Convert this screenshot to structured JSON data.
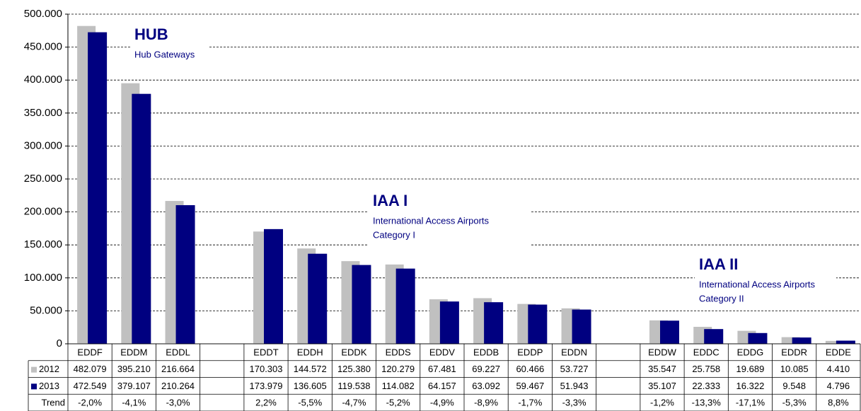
{
  "chart_data": {
    "type": "bar",
    "categories": [
      "EDDF",
      "EDDM",
      "EDDL",
      null,
      "EDDT",
      "EDDH",
      "EDDK",
      "EDDS",
      "EDDV",
      "EDDB",
      "EDDP",
      "EDDN",
      null,
      "EDDW",
      "EDDC",
      "EDDG",
      "EDDR",
      "EDDE"
    ],
    "series": [
      {
        "name": "2012",
        "color": "#c0c0c0",
        "values": [
          482079,
          395210,
          216664,
          null,
          170303,
          144572,
          125380,
          120279,
          67481,
          69227,
          60466,
          53727,
          null,
          35547,
          25758,
          19689,
          10085,
          4410
        ],
        "value_labels": [
          "482.079",
          "395.210",
          "216.664",
          null,
          "170.303",
          "144.572",
          "125.380",
          "120.279",
          "67.481",
          "69.227",
          "60.466",
          "53.727",
          null,
          "35.547",
          "25.758",
          "19.689",
          "10.085",
          "4.410"
        ]
      },
      {
        "name": "2013",
        "color": "#000080",
        "values": [
          472549,
          379107,
          210264,
          null,
          173979,
          136605,
          119538,
          114082,
          64157,
          63092,
          59467,
          51943,
          null,
          35107,
          22333,
          16322,
          9548,
          4796
        ],
        "value_labels": [
          "472.549",
          "379.107",
          "210.264",
          null,
          "173.979",
          "136.605",
          "119.538",
          "114.082",
          "64.157",
          "63.092",
          "59.467",
          "51.943",
          null,
          "35.107",
          "22.333",
          "16.322",
          "9.548",
          "4.796"
        ]
      }
    ],
    "trend_label": "Trend",
    "trend": [
      -2.0,
      -4.1,
      -3.0,
      null,
      2.2,
      -5.5,
      -4.7,
      -5.2,
      -4.9,
      -8.9,
      -1.7,
      -3.3,
      null,
      -1.2,
      -13.3,
      -17.1,
      -5.3,
      8.8
    ],
    "trend_labels": [
      "-2,0%",
      "-4,1%",
      "-3,0%",
      null,
      "2,2%",
      "-5,5%",
      "-4,7%",
      "-5,2%",
      "-4,9%",
      "-8,9%",
      "-1,7%",
      "-3,3%",
      null,
      "-1,2%",
      "-13,3%",
      "-17,1%",
      "-5,3%",
      "8,8%"
    ],
    "ylim": [
      0,
      500000
    ],
    "yticks": [
      0,
      {
        "value": 50000,
        "label": "50.000"
      },
      {
        "value": 100000,
        "label": "100.000"
      },
      {
        "value": 150000,
        "label": "150.000"
      },
      {
        "value": 200000,
        "label": "200.000"
      },
      {
        "value": 250000,
        "label": "250.000"
      },
      {
        "value": 300000,
        "label": "300.000"
      },
      {
        "value": 350000,
        "label": "350.000"
      },
      {
        "value": 400000,
        "label": "400.000"
      },
      {
        "value": 450000,
        "label": "450.000"
      },
      {
        "value": 500000,
        "label": "500.000"
      }
    ],
    "grid": true,
    "annotations": [
      {
        "title": "HUB",
        "lines": [
          "Hub Gateways"
        ]
      },
      {
        "title": "IAA I",
        "lines": [
          "International Access Airports",
          "Category I"
        ]
      },
      {
        "title": "IAA II",
        "lines": [
          "International Access Airports",
          "Category II"
        ]
      }
    ]
  }
}
